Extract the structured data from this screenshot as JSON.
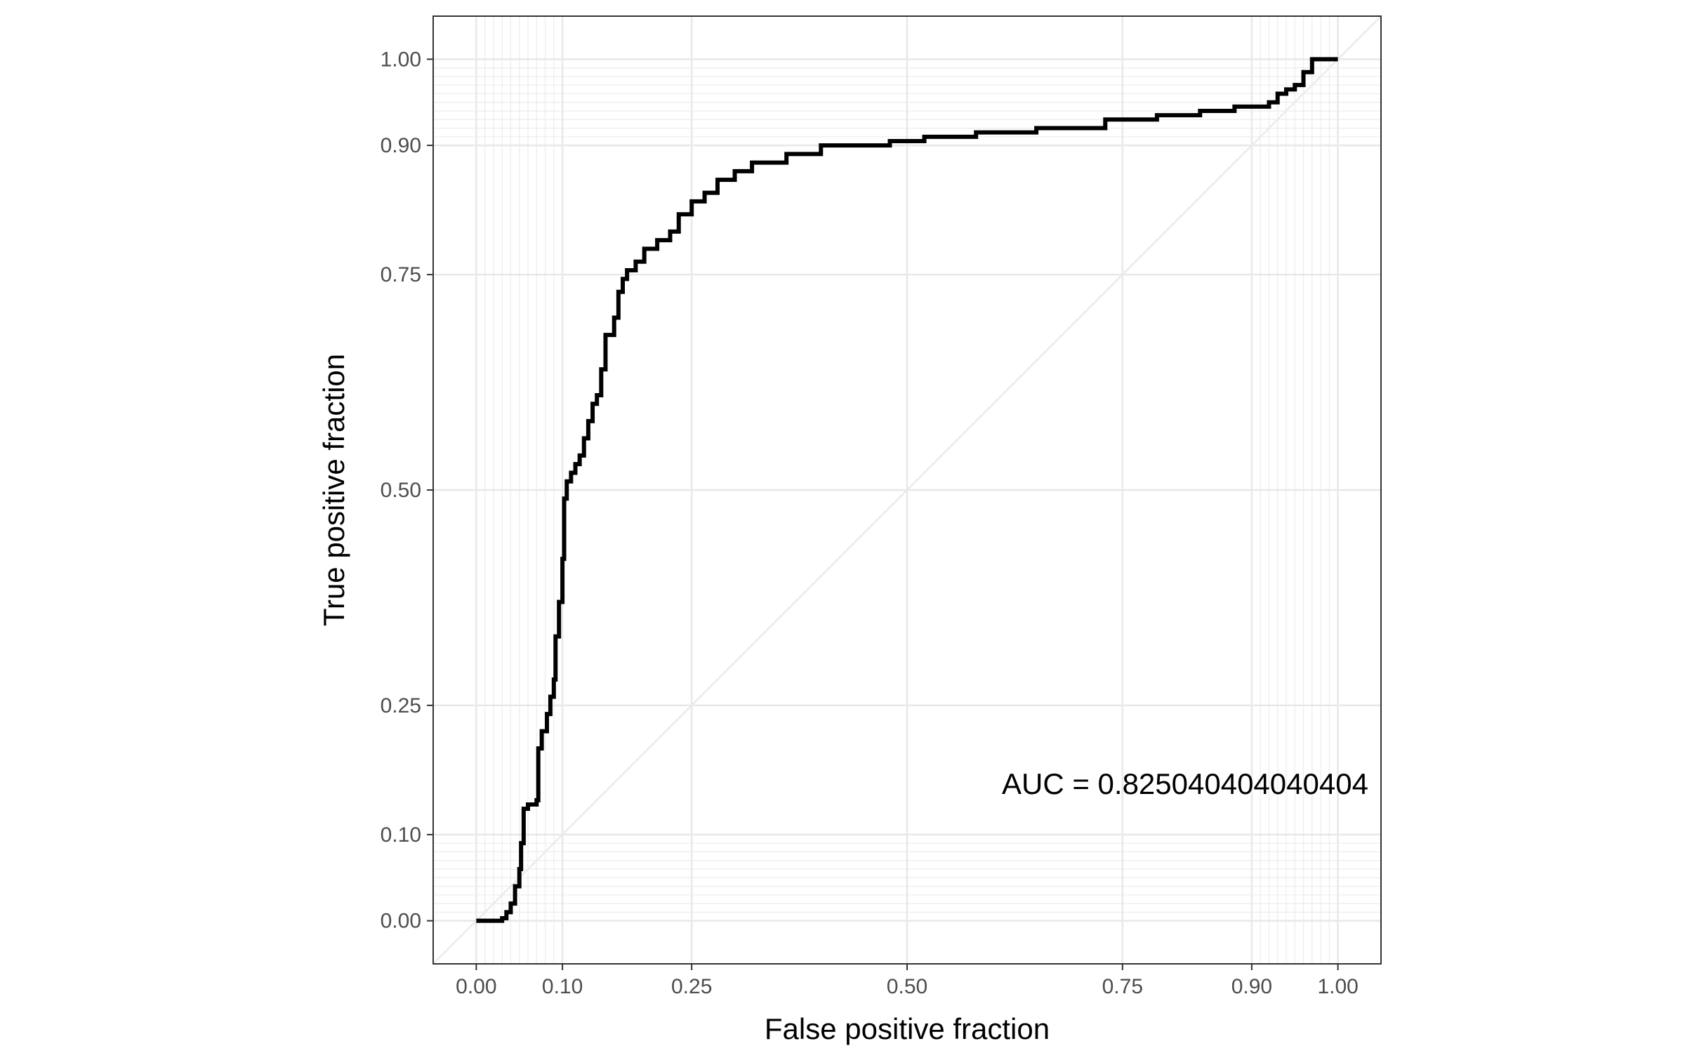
{
  "chart_data": {
    "type": "line",
    "title": "",
    "xlabel": "False positive fraction",
    "ylabel": "True positive fraction",
    "xlim": [
      -0.05,
      1.05
    ],
    "ylim": [
      -0.05,
      1.05
    ],
    "x_ticks": [
      0.0,
      0.1,
      0.25,
      0.5,
      0.75,
      0.9,
      1.0
    ],
    "y_ticks": [
      0.0,
      0.1,
      0.25,
      0.5,
      0.75,
      0.9,
      1.0
    ],
    "x_tick_labels": [
      "0.00",
      "0.10",
      "0.25",
      "0.50",
      "0.75",
      "0.90",
      "1.00"
    ],
    "y_tick_labels": [
      "0.00",
      "0.10",
      "0.25",
      "0.50",
      "0.75",
      "0.90",
      "1.00"
    ],
    "minor_ticks": [
      0.01,
      0.02,
      0.03,
      0.04,
      0.05,
      0.06,
      0.07,
      0.08,
      0.09,
      0.91,
      0.92,
      0.93,
      0.94,
      0.95,
      0.96,
      0.97,
      0.98,
      0.99
    ],
    "grid": true,
    "reference_line": {
      "x": [
        -0.05,
        1.05
      ],
      "y": [
        -0.05,
        1.05
      ],
      "color": "#ebebeb"
    },
    "annotation": {
      "text": "AUC = 0.825040404040404",
      "x": 0.61,
      "y": 0.147
    },
    "series": [
      {
        "color": "#000000",
        "points": [
          [
            0.0,
            0.0
          ],
          [
            0.025,
            0.0
          ],
          [
            0.03,
            0.003
          ],
          [
            0.035,
            0.01
          ],
          [
            0.04,
            0.02
          ],
          [
            0.045,
            0.04
          ],
          [
            0.05,
            0.06
          ],
          [
            0.052,
            0.09
          ],
          [
            0.055,
            0.13
          ],
          [
            0.06,
            0.135
          ],
          [
            0.07,
            0.14
          ],
          [
            0.072,
            0.2
          ],
          [
            0.076,
            0.22
          ],
          [
            0.082,
            0.24
          ],
          [
            0.086,
            0.26
          ],
          [
            0.09,
            0.28
          ],
          [
            0.092,
            0.33
          ],
          [
            0.096,
            0.37
          ],
          [
            0.1,
            0.42
          ],
          [
            0.102,
            0.49
          ],
          [
            0.105,
            0.51
          ],
          [
            0.11,
            0.52
          ],
          [
            0.115,
            0.53
          ],
          [
            0.12,
            0.54
          ],
          [
            0.125,
            0.56
          ],
          [
            0.13,
            0.58
          ],
          [
            0.135,
            0.6
          ],
          [
            0.14,
            0.61
          ],
          [
            0.145,
            0.64
          ],
          [
            0.15,
            0.68
          ],
          [
            0.16,
            0.7
          ],
          [
            0.165,
            0.73
          ],
          [
            0.17,
            0.745
          ],
          [
            0.175,
            0.755
          ],
          [
            0.185,
            0.765
          ],
          [
            0.195,
            0.78
          ],
          [
            0.21,
            0.79
          ],
          [
            0.225,
            0.8
          ],
          [
            0.235,
            0.82
          ],
          [
            0.25,
            0.835
          ],
          [
            0.265,
            0.845
          ],
          [
            0.28,
            0.86
          ],
          [
            0.3,
            0.87
          ],
          [
            0.32,
            0.88
          ],
          [
            0.36,
            0.89
          ],
          [
            0.4,
            0.9
          ],
          [
            0.44,
            0.9
          ],
          [
            0.48,
            0.905
          ],
          [
            0.52,
            0.91
          ],
          [
            0.58,
            0.915
          ],
          [
            0.65,
            0.92
          ],
          [
            0.72,
            0.92
          ],
          [
            0.73,
            0.93
          ],
          [
            0.79,
            0.935
          ],
          [
            0.84,
            0.94
          ],
          [
            0.88,
            0.945
          ],
          [
            0.9,
            0.945
          ],
          [
            0.92,
            0.95
          ],
          [
            0.93,
            0.96
          ],
          [
            0.94,
            0.965
          ],
          [
            0.95,
            0.97
          ],
          [
            0.96,
            0.985
          ],
          [
            0.97,
            1.0
          ],
          [
            1.0,
            1.0
          ]
        ]
      }
    ]
  }
}
